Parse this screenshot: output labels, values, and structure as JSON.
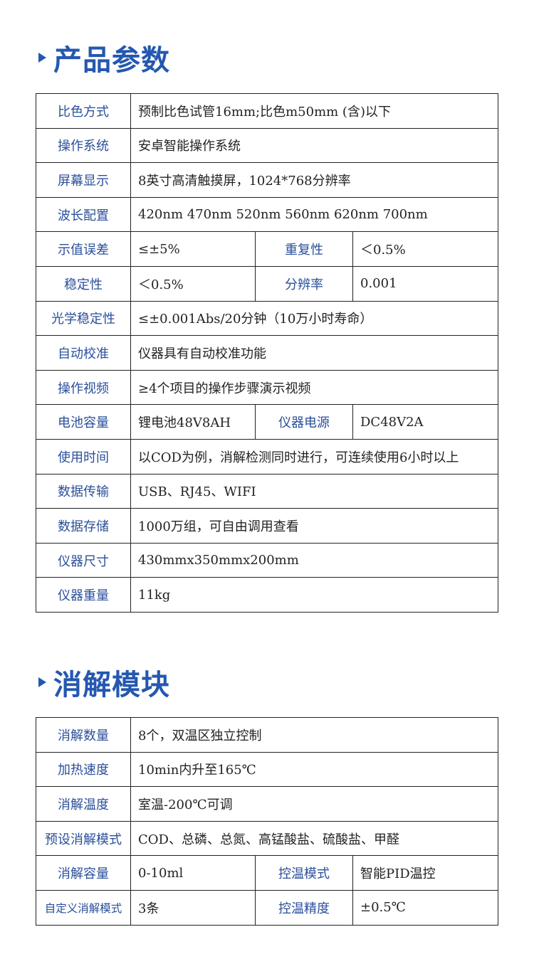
{
  "section1": {
    "title": "产品参数",
    "rows": [
      [
        {
          "t": "比色方式",
          "l": 1
        },
        {
          "t": "预制比色试管16mm;比色m50mm (含)以下",
          "span": 3
        }
      ],
      [
        {
          "t": "操作系统",
          "l": 1
        },
        {
          "t": "安卓智能操作系统",
          "span": 3
        }
      ],
      [
        {
          "t": "屏幕显示",
          "l": 1
        },
        {
          "t": "8英寸高清触摸屏，1024*768分辨率",
          "span": 3
        }
      ],
      [
        {
          "t": "波长配置",
          "l": 1
        },
        {
          "t": "420nm  470nm  520nm  560nm  620nm  700nm",
          "span": 3
        }
      ],
      [
        {
          "t": "示值误差",
          "l": 1
        },
        {
          "t": "≤±5%"
        },
        {
          "t": "重复性",
          "l": 1
        },
        {
          "t": "＜0.5%"
        }
      ],
      [
        {
          "t": "稳定性",
          "l": 1
        },
        {
          "t": "＜0.5%"
        },
        {
          "t": "分辨率",
          "l": 1
        },
        {
          "t": "0.001"
        }
      ],
      [
        {
          "t": "光学稳定性",
          "l": 1
        },
        {
          "t": "≤±0.001Abs/20分钟（10万小时寿命）",
          "span": 3
        }
      ],
      [
        {
          "t": "自动校准",
          "l": 1
        },
        {
          "t": "仪器具有自动校准功能",
          "span": 3
        }
      ],
      [
        {
          "t": "操作视频",
          "l": 1
        },
        {
          "t": "≥4个项目的操作步骤演示视频",
          "span": 3
        }
      ],
      [
        {
          "t": "电池容量",
          "l": 1
        },
        {
          "t": "锂电池48V8AH"
        },
        {
          "t": "仪器电源",
          "l": 1
        },
        {
          "t": "DC48V2A"
        }
      ],
      [
        {
          "t": "使用时间",
          "l": 1
        },
        {
          "t": "以COD为例，消解检测同时进行，可连续使用6小时以上",
          "span": 3
        }
      ],
      [
        {
          "t": "数据传输",
          "l": 1
        },
        {
          "t": "USB、RJ45、WIFI",
          "span": 3
        }
      ],
      [
        {
          "t": "数据存储",
          "l": 1
        },
        {
          "t": "1000万组，可自由调用查看",
          "span": 3
        }
      ],
      [
        {
          "t": "仪器尺寸",
          "l": 1
        },
        {
          "t": "430mmx350mmx200mm",
          "span": 3
        }
      ],
      [
        {
          "t": "仪器重量",
          "l": 1
        },
        {
          "t": "11kg",
          "span": 3
        }
      ]
    ]
  },
  "section2": {
    "title": "消解模块",
    "rows": [
      [
        {
          "t": "消解数量",
          "l": 1
        },
        {
          "t": "8个，双温区独立控制",
          "span": 3
        }
      ],
      [
        {
          "t": "加热速度",
          "l": 1
        },
        {
          "t": "10min内升至165℃",
          "span": 3
        }
      ],
      [
        {
          "t": "消解温度",
          "l": 1
        },
        {
          "t": "室温-200℃可调",
          "span": 3
        }
      ],
      [
        {
          "t": "预设消解模式",
          "l": 1
        },
        {
          "t": "COD、总磷、总氮、高锰酸盐、硫酸盐、甲醛",
          "span": 3
        }
      ],
      [
        {
          "t": "消解容量",
          "l": 1
        },
        {
          "t": "0-10ml"
        },
        {
          "t": "控温模式",
          "l": 1
        },
        {
          "t": "智能PID温控"
        }
      ],
      [
        {
          "t": "自定义消解模式",
          "l": 1,
          "small": 1
        },
        {
          "t": "3条"
        },
        {
          "t": "控温精度",
          "l": 1
        },
        {
          "t": "±0.5℃"
        }
      ]
    ]
  }
}
